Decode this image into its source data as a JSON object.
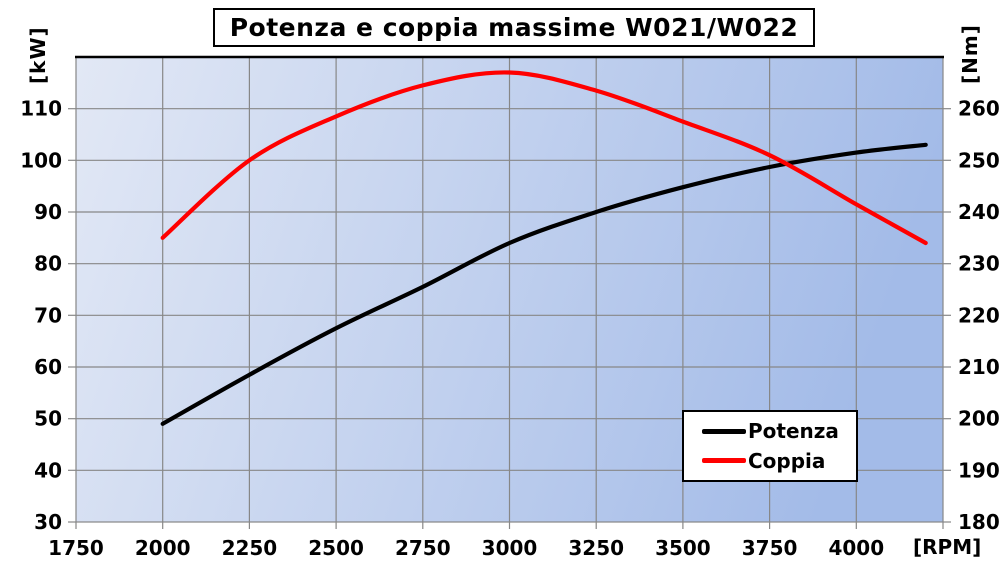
{
  "chart_data": {
    "type": "line",
    "title": "Potenza e coppia massime W021/W022",
    "x": [
      2000,
      2250,
      2500,
      2750,
      3000,
      3250,
      3500,
      3750,
      4000,
      4200
    ],
    "series": [
      {
        "name": "Potenza",
        "axis": "left",
        "color": "#000000",
        "unit": "kW",
        "values": [
          49,
          58.5,
          67.5,
          75.5,
          84,
          90,
          94.8,
          98.7,
          101.5,
          103
        ]
      },
      {
        "name": "Coppia",
        "axis": "right",
        "color": "#ff0000",
        "unit": "Nm",
        "values": [
          235,
          250,
          258.5,
          264.5,
          267,
          263.5,
          257.5,
          251,
          241.5,
          234
        ]
      }
    ],
    "x_axis": {
      "min": 1750,
      "max": 4250,
      "tick_step": 250,
      "unit": "[RPM]",
      "tick_labels": [
        1750,
        2000,
        2250,
        2500,
        2750,
        3000,
        3250,
        3500,
        3750,
        4000
      ]
    },
    "left_axis": {
      "min": 30,
      "max": 120,
      "tick_step": 10,
      "unit": "[kW]",
      "tick_labels": [
        30,
        40,
        50,
        60,
        70,
        80,
        90,
        100,
        110
      ]
    },
    "right_axis": {
      "min": 180,
      "max": 270,
      "tick_step": 10,
      "unit": "[Nm]",
      "tick_labels": [
        180,
        190,
        200,
        210,
        220,
        230,
        240,
        250,
        260
      ]
    },
    "grid": true,
    "legend": {
      "position": "inside-bottom-right",
      "entries": [
        "Potenza",
        "Coppia"
      ]
    },
    "plot_style": {
      "gradient_left": "#e2e8f5",
      "gradient_right": "#a3bbe8",
      "gridline_color": "#878787",
      "top_border_color": "#000000",
      "border_color": "#878787",
      "tick_label_color": "#000000"
    }
  }
}
